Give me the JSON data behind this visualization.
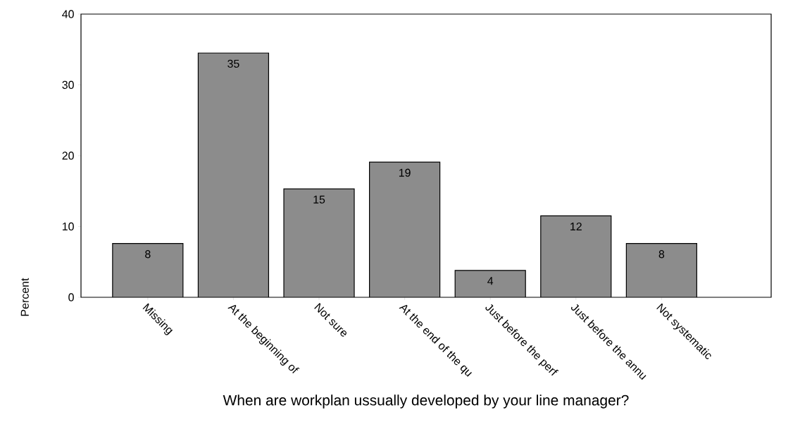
{
  "chart_data": {
    "type": "bar",
    "xlabel": "When are workplan ussually developed by your line manager?",
    "ylabel": "Percent",
    "categories": [
      "Missing",
      "At the beginning of",
      "Not sure",
      "At the end of the qu",
      "Just before the perf",
      "Just before the annu",
      "Not systematic"
    ],
    "values": [
      7.6,
      34.5,
      15.3,
      19.1,
      3.8,
      11.5,
      7.6
    ],
    "value_labels": [
      "8",
      "35",
      "15",
      "19",
      "4",
      "12",
      "8"
    ],
    "color": "#8c8c8c",
    "ylim": [
      0,
      40
    ],
    "yticks": [
      0,
      10,
      20,
      30,
      40
    ],
    "grid": false
  }
}
